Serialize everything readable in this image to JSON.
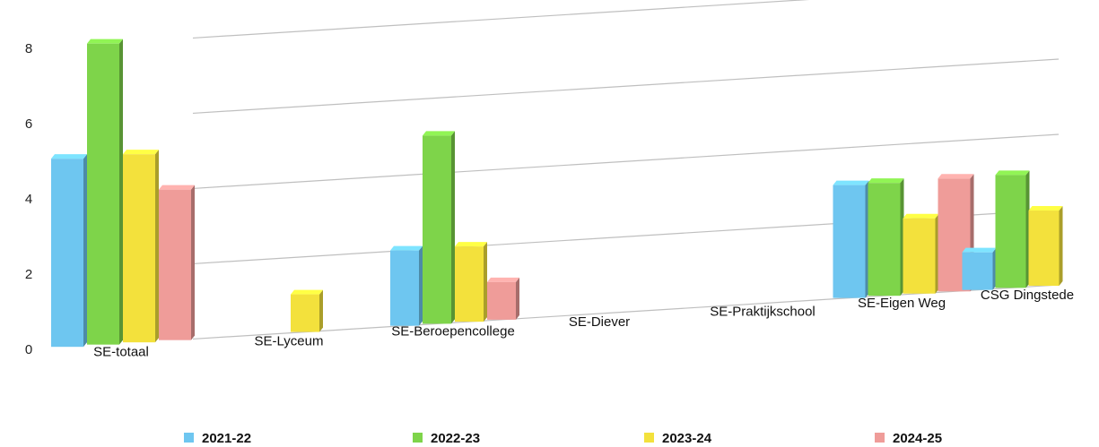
{
  "chart_data": {
    "type": "bar",
    "title": "",
    "xlabel": "",
    "ylabel": "",
    "ylim": [
      0,
      8
    ],
    "yticks": [
      0,
      2,
      4,
      6,
      8
    ],
    "grid": true,
    "legend_position": "bottom",
    "categories": [
      "SE-totaal",
      "SE-Lyceum",
      "SE-Beroepencollege",
      "SE-Diever",
      "SE-Praktijkschool",
      "SE-Eigen Weg",
      "CSG Dingstede"
    ],
    "series": [
      {
        "name": "2021-22",
        "color": "#6ec6f0",
        "values": [
          5,
          0,
          2,
          0,
          0,
          3,
          1
        ]
      },
      {
        "name": "2022-23",
        "color": "#7ed44a",
        "values": [
          8,
          0,
          5,
          0,
          0,
          3,
          3
        ]
      },
      {
        "name": "2023-24",
        "color": "#f3e13c",
        "values": [
          5,
          1,
          2,
          0,
          0,
          2,
          2
        ]
      },
      {
        "name": "2024-25",
        "color": "#ef9c99",
        "values": [
          4,
          0,
          1,
          0,
          0,
          3,
          0
        ]
      }
    ]
  }
}
